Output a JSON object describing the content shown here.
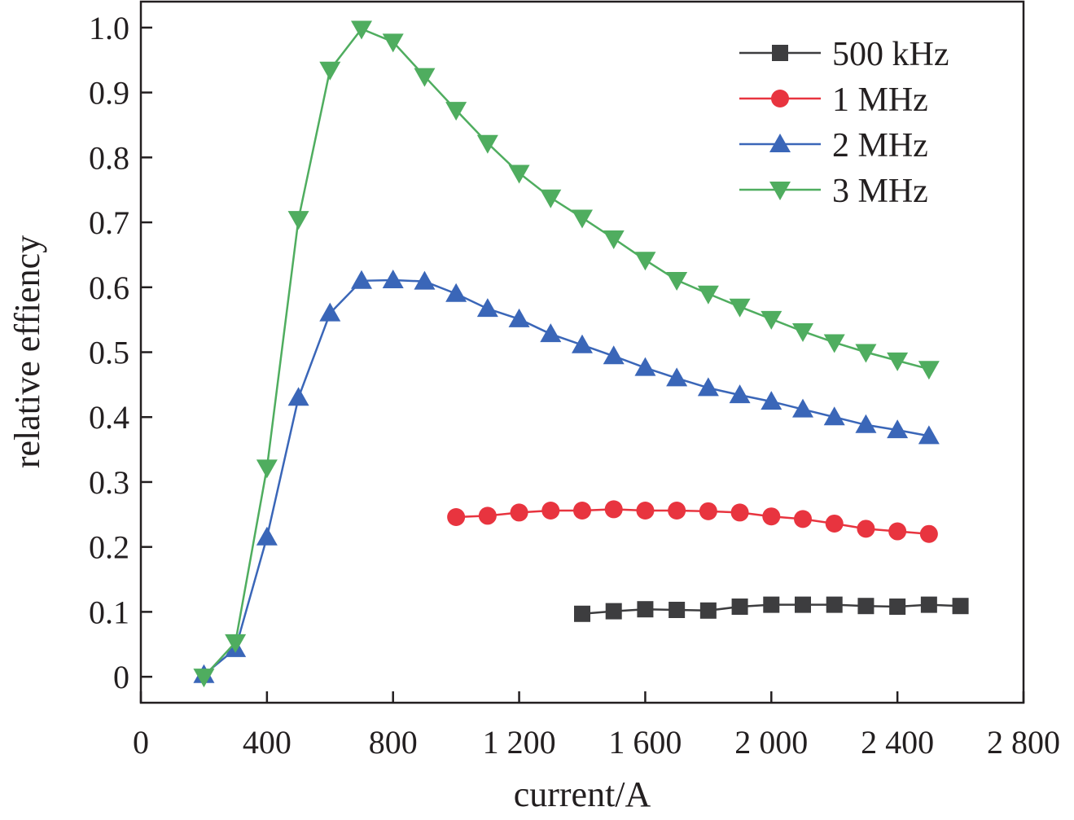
{
  "chart_data": {
    "type": "line",
    "title": "",
    "xlabel": "current/A",
    "ylabel": "relative effiency",
    "xlim": [
      0,
      2800
    ],
    "ylim": [
      -0.04,
      1.04
    ],
    "x_ticks": [
      0,
      400,
      800,
      1200,
      1600,
      2000,
      2400,
      2800
    ],
    "x_tick_labels": [
      "0",
      "400",
      "800",
      "1 200",
      "1 600",
      "2 000",
      "2 400",
      "2 800"
    ],
    "y_ticks": [
      0,
      0.1,
      0.2,
      0.3,
      0.4,
      0.5,
      0.6,
      0.7,
      0.8,
      0.9,
      1.0
    ],
    "y_tick_labels": [
      "0",
      "0.1",
      "0.2",
      "0.3",
      "0.4",
      "0.5",
      "0.6",
      "0.7",
      "0.8",
      "0.9",
      "1.0"
    ],
    "grid": false,
    "legend_position": "top-right",
    "series": [
      {
        "name": "500 kHz",
        "marker": "square",
        "color": "#3d3d3f",
        "x": [
          1400,
          1500,
          1600,
          1700,
          1800,
          1900,
          2000,
          2100,
          2200,
          2300,
          2400,
          2500,
          2600
        ],
        "y": [
          0.097,
          0.101,
          0.104,
          0.103,
          0.102,
          0.108,
          0.111,
          0.111,
          0.111,
          0.109,
          0.108,
          0.111,
          0.109
        ]
      },
      {
        "name": "1 MHz",
        "marker": "circle",
        "color": "#e8343f",
        "x": [
          1000,
          1100,
          1200,
          1300,
          1400,
          1500,
          1600,
          1700,
          1800,
          1900,
          2000,
          2100,
          2200,
          2300,
          2400,
          2500
        ],
        "y": [
          0.246,
          0.248,
          0.253,
          0.256,
          0.256,
          0.258,
          0.256,
          0.256,
          0.255,
          0.253,
          0.247,
          0.243,
          0.236,
          0.228,
          0.224,
          0.22
        ]
      },
      {
        "name": "2 MHz",
        "marker": "triangle-up",
        "color": "#3a66b8",
        "x": [
          200,
          300,
          400,
          500,
          600,
          700,
          800,
          900,
          1000,
          1100,
          1200,
          1300,
          1400,
          1500,
          1600,
          1700,
          1800,
          1900,
          2000,
          2100,
          2200,
          2300,
          2400,
          2500
        ],
        "y": [
          0.003,
          0.043,
          0.215,
          0.43,
          0.56,
          0.61,
          0.611,
          0.609,
          0.59,
          0.567,
          0.551,
          0.528,
          0.511,
          0.494,
          0.476,
          0.46,
          0.445,
          0.434,
          0.424,
          0.412,
          0.4,
          0.388,
          0.38,
          0.371
        ]
      },
      {
        "name": "3 MHz",
        "marker": "triangle-down",
        "color": "#4fad5f",
        "x": [
          200,
          300,
          400,
          500,
          600,
          700,
          800,
          900,
          1000,
          1100,
          1200,
          1300,
          1400,
          1500,
          1600,
          1700,
          1800,
          1900,
          2000,
          2100,
          2200,
          2300,
          2400,
          2500
        ],
        "y": [
          0.0,
          0.053,
          0.322,
          0.705,
          0.935,
          0.998,
          0.978,
          0.925,
          0.873,
          0.822,
          0.776,
          0.738,
          0.707,
          0.675,
          0.642,
          0.611,
          0.59,
          0.57,
          0.551,
          0.532,
          0.515,
          0.5,
          0.487,
          0.474
        ]
      }
    ]
  }
}
